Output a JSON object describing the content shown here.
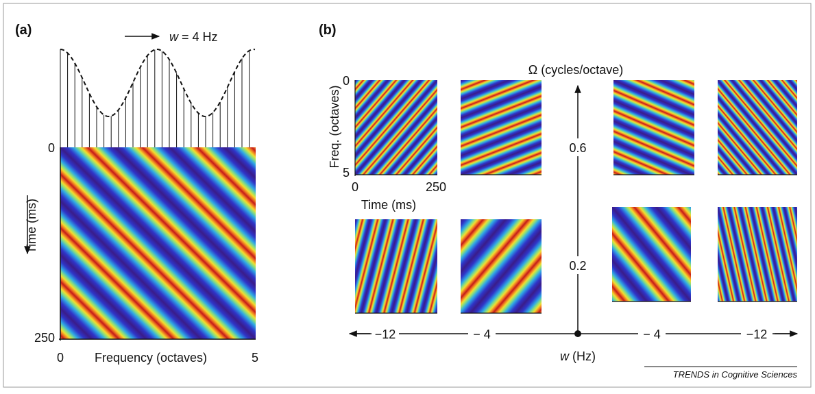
{
  "panel_a": {
    "label": "(a)",
    "arrow_label": {
      "variable": "w",
      "text": " = 4 Hz"
    },
    "time_axis": {
      "start": "0",
      "end": "250",
      "title": "Time (ms)"
    },
    "frequency_axis": {
      "start": "0",
      "title": "Frequency (octaves)",
      "end": "5"
    }
  },
  "panel_b": {
    "label": "(b)",
    "omega_title": "Ω (cycles/octave)",
    "inset_axes": {
      "freq_title": "Freq. (octaves)",
      "freq_start": "0",
      "freq_end": "5",
      "time_start": "0",
      "time_end": "250",
      "time_title": "Time (ms)"
    },
    "omega_ticks": [
      "0.6",
      "0.2"
    ],
    "w_ticks": [
      "−12",
      "− 4",
      "− 4",
      "−12"
    ],
    "w_title": {
      "variable": "w",
      "text": " (Hz)"
    }
  },
  "footer": "TRENDS in Cognitive Sciences"
}
